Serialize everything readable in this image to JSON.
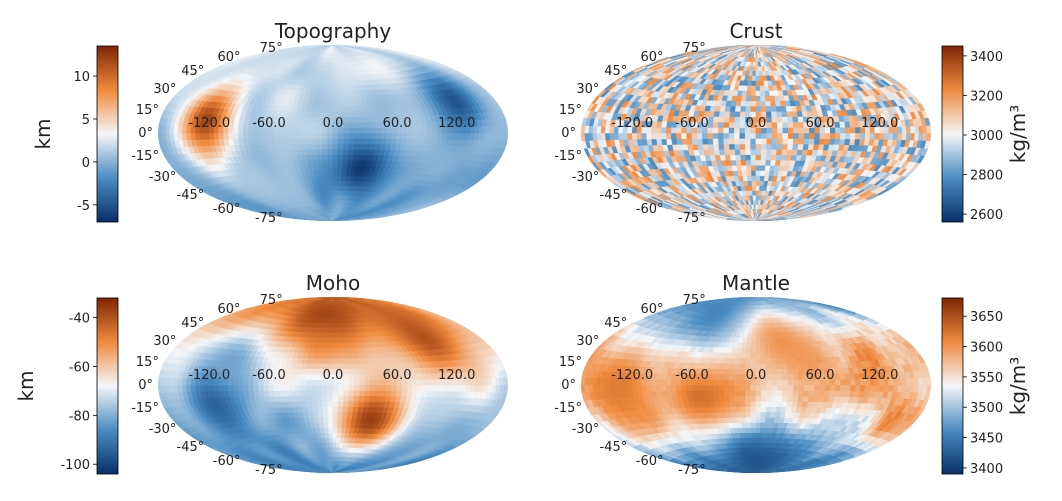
{
  "figure": {
    "colors": {
      "dark_blue": "#08306b",
      "mid_blue": "#4a8cc2",
      "light": "#f4f6f8",
      "mid_orange": "#f08a3e",
      "dark_orange": "#7f2704"
    },
    "longitude_labels": [
      "-120.0",
      "-60.0",
      "0.0",
      "60.0",
      "120.0"
    ],
    "latitude_labels": [
      "75°",
      "60°",
      "45°",
      "30°",
      "15°",
      "0°",
      "-15°",
      "-30°",
      "-45°",
      "-60°",
      "-75°"
    ]
  },
  "chart_data": [
    {
      "type": "heatmap",
      "projection": "hammer",
      "title": "Topography",
      "colorbar": {
        "side": "left",
        "label": "km",
        "range": [
          -7,
          13.5
        ],
        "ticks": [
          "10",
          "5",
          "0",
          "-5"
        ],
        "tick_values": [
          10,
          5,
          0,
          -5
        ]
      },
      "features": [
        {
          "lon": 30,
          "lat": -32,
          "value": -6.5
        },
        {
          "lon": -120,
          "lat": -15,
          "value": 4
        },
        {
          "lon": -125,
          "lat": 10,
          "value": 12
        },
        {
          "lon": -90,
          "lat": -40,
          "value": 1
        },
        {
          "lon": 130,
          "lat": 25,
          "value": -5
        }
      ]
    },
    {
      "type": "heatmap",
      "projection": "hammer",
      "title": "Crust",
      "colorbar": {
        "side": "right",
        "label": "kg/m³",
        "range": [
          2560,
          3450
        ],
        "ticks": [
          "3400",
          "3200",
          "3000",
          "2800",
          "2600"
        ],
        "tick_values": [
          3400,
          3200,
          3000,
          2800,
          2600
        ]
      },
      "features": []
    },
    {
      "type": "heatmap",
      "projection": "hammer",
      "title": "Moho",
      "colorbar": {
        "side": "left",
        "label": "km",
        "range": [
          -104,
          -32
        ],
        "ticks": [
          "-40",
          "-60",
          "-80",
          "-100"
        ],
        "tick_values": [
          -40,
          -60,
          -80,
          -100
        ]
      },
      "features": [
        {
          "lon": 40,
          "lat": -32,
          "value": -36
        },
        {
          "lon": -115,
          "lat": -10,
          "value": -98
        },
        {
          "lon": -100,
          "lat": 20,
          "value": -82
        },
        {
          "lon": -15,
          "lat": 70,
          "value": -38
        },
        {
          "lon": 110,
          "lat": 40,
          "value": -40
        }
      ]
    },
    {
      "type": "heatmap",
      "projection": "hammer",
      "title": "Mantle",
      "colorbar": {
        "side": "right",
        "label": "kg/m³",
        "range": [
          3390,
          3680
        ],
        "ticks": [
          "3650",
          "3600",
          "3550",
          "3500",
          "3450",
          "3400"
        ],
        "tick_values": [
          3650,
          3600,
          3550,
          3500,
          3450,
          3400
        ]
      },
      "features": [
        {
          "lon": -50,
          "lat": -15,
          "value": 3640
        },
        {
          "lon": -130,
          "lat": 0,
          "value": 3620
        },
        {
          "lon": 0,
          "lat": -75,
          "value": 3420
        },
        {
          "lon": -60,
          "lat": 70,
          "value": 3440
        },
        {
          "lon": 30,
          "lat": 40,
          "value": 3600
        }
      ]
    }
  ]
}
